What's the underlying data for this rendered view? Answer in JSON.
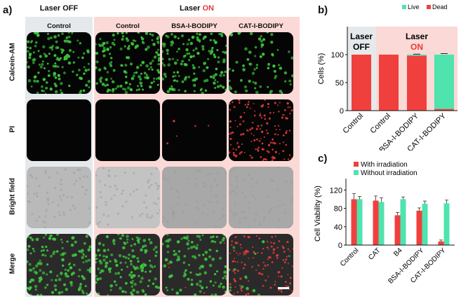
{
  "panel_a": {
    "letter": "a)",
    "header_off": "Laser OFF",
    "header_on_prefix": "Laser ",
    "header_on_highlight": "ON",
    "columns": [
      "Control",
      "Control",
      "BSA-I-BODIPY",
      "CAT-I-BODIPY"
    ],
    "rows": [
      "Calcein-AM",
      "PI",
      "Bright field",
      "Merge"
    ],
    "colors": {
      "off_bg": "#e6e9ec",
      "on_bg": "#fbd9d6",
      "calcein": "#3cc83c",
      "pi": "#e83a3a",
      "bright": "#bdbdbd"
    }
  },
  "panel_b": {
    "letter": "b)",
    "inset_off_line1": "Laser",
    "inset_off_line2": "OFF",
    "inset_on_line1": "Laser",
    "inset_on_line2": "ON",
    "legend_icon_live": "square-icon",
    "legend_icon_dead": "square-icon"
  },
  "panel_c": {
    "letter": "c)"
  },
  "chart_data": [
    {
      "type": "bar",
      "stacked": true,
      "ylabel": "Cells (%)",
      "categories": [
        "Control",
        "Control",
        "BSA-I-BODIPY",
        "CAT-I-BODIPY"
      ],
      "series": [
        {
          "name": "Dead",
          "values": [
            100,
            100,
            98,
            3
          ],
          "color": "#f0403e"
        },
        {
          "name": "Live",
          "values": [
            0,
            0,
            2,
            97
          ],
          "color": "#4fe3ad"
        }
      ],
      "yticks": [
        0,
        50,
        100
      ],
      "ylim": [
        0,
        150
      ],
      "legend": "top-right"
    },
    {
      "type": "bar",
      "ylabel": "Cell Viability (%)",
      "categories": [
        "Control",
        "CAT",
        "B4",
        "BSA-I-BODIPY",
        "CAT-I-BODIPY"
      ],
      "series": [
        {
          "name": "With irradiation",
          "values": [
            100,
            97,
            65,
            75,
            8
          ],
          "errors": [
            12,
            10,
            6,
            6,
            3
          ],
          "color": "#f0403e"
        },
        {
          "name": "Without irradiation",
          "values": [
            100,
            94,
            100,
            90,
            91
          ],
          "errors": [
            6,
            9,
            5,
            6,
            7
          ],
          "color": "#4fe3ad"
        }
      ],
      "yticks": [
        0,
        40,
        80,
        120
      ],
      "ylim": [
        0,
        145
      ],
      "legend": "top-left"
    }
  ]
}
